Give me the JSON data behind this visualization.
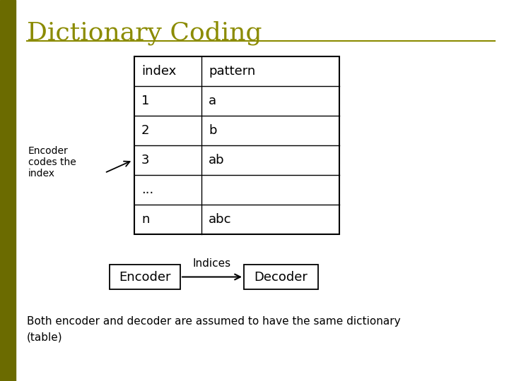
{
  "title": "Dictionary Coding",
  "title_color": "#8B8B00",
  "title_fontsize": 26,
  "background_color": "#FFFFFF",
  "left_bar_color": "#6B6B00",
  "separator_line_color": "#8B8B00",
  "table_headers": [
    "index",
    "pattern"
  ],
  "table_rows": [
    [
      "1",
      "a"
    ],
    [
      "2",
      "b"
    ],
    [
      "3",
      "ab"
    ],
    [
      "...",
      ""
    ],
    [
      "n",
      "abc"
    ]
  ],
  "encoder_label": "Encoder\ncodes the\nindex",
  "encoder_box": "Encoder",
  "decoder_box": "Decoder",
  "arrow_label": "Indices",
  "bottom_text": "Both encoder and decoder are assumed to have the same dictionary\n(table)",
  "table_font": "DejaVu Sans",
  "body_font": "DejaVu Sans",
  "left_bar_width": 22,
  "fig_w": 7.2,
  "fig_h": 5.4,
  "dpi": 100
}
